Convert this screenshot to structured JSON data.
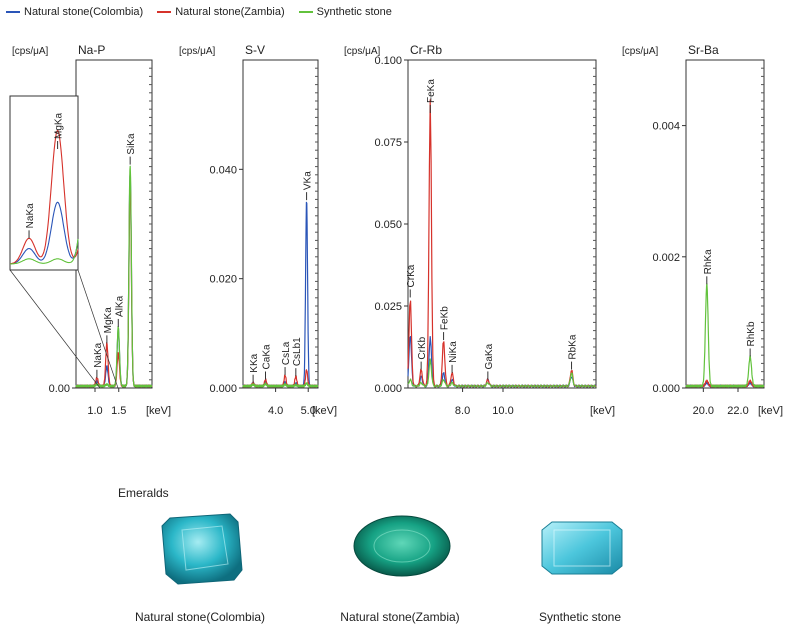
{
  "legend": [
    {
      "name": "Natural stone(Colombia)",
      "color": "#2a55b8"
    },
    {
      "name": "Natural stone(Zambia)",
      "color": "#d6322b"
    },
    {
      "name": "Synthetic stone",
      "color": "#62c23c"
    }
  ],
  "chart_data": [
    {
      "type": "line",
      "title": "Na-P",
      "ylabel": "[cps/μA]",
      "xlabel": "[keV]",
      "xlim": [
        0.6,
        2.2
      ],
      "ylim": [
        0,
        2.0
      ],
      "xticks": [
        "1.0",
        "1.5"
      ],
      "yticks": [
        "0.00",
        "1.00"
      ],
      "peaks": [
        "NaKa",
        "MgKa",
        "AlKa",
        "SiKa"
      ],
      "series": [
        {
          "name": "Natural stone(Colombia)",
          "values": [
            [
              1.04,
              0.03
            ],
            [
              1.25,
              0.12
            ],
            [
              1.49,
              0.35
            ],
            [
              1.74,
              1.3
            ]
          ]
        },
        {
          "name": "Natural stone(Zambia)",
          "values": [
            [
              1.04,
              0.05
            ],
            [
              1.25,
              0.26
            ],
            [
              1.49,
              0.2
            ],
            [
              1.74,
              1.25
            ]
          ]
        },
        {
          "name": "Synthetic stone",
          "values": [
            [
              1.04,
              0.01
            ],
            [
              1.25,
              0.01
            ],
            [
              1.49,
              0.36
            ],
            [
              1.74,
              1.35
            ]
          ]
        }
      ],
      "inset": {
        "peaks": [
          "NaKa",
          "MgKa"
        ]
      }
    },
    {
      "type": "line",
      "title": "S-V",
      "ylabel": "[cps/μA]",
      "xlabel": "[keV]",
      "xlim": [
        3.0,
        5.3
      ],
      "ylim": [
        0,
        0.06
      ],
      "xticks": [
        "4.0",
        "5.0"
      ],
      "yticks": [
        "0.000",
        "0.020",
        "0.040"
      ],
      "peaks": [
        "KKa",
        "CaKa",
        "CsLa",
        "CsLb1",
        "VKa"
      ],
      "series": [
        {
          "name": "Natural stone(Colombia)",
          "values": [
            [
              3.31,
              0.0006
            ],
            [
              3.69,
              0.0009
            ],
            [
              4.29,
              0.0007
            ],
            [
              4.62,
              0.0005
            ],
            [
              4.95,
              0.034
            ]
          ]
        },
        {
          "name": "Natural stone(Zambia)",
          "values": [
            [
              3.31,
              0.0006
            ],
            [
              3.69,
              0.0012
            ],
            [
              4.29,
              0.002
            ],
            [
              4.62,
              0.0018
            ],
            [
              4.95,
              0.003
            ]
          ]
        },
        {
          "name": "Synthetic stone",
          "values": [
            [
              3.31,
              0.0003
            ],
            [
              3.69,
              0.0004
            ],
            [
              4.29,
              0.0003
            ],
            [
              4.62,
              0.0002
            ],
            [
              4.95,
              0.0005
            ]
          ]
        }
      ]
    },
    {
      "type": "line",
      "title": "Cr-Rb",
      "ylabel": "[cps/μA]",
      "xlabel": "[keV]",
      "xlim": [
        5.3,
        14.6
      ],
      "ylim": [
        0,
        0.1
      ],
      "xticks": [
        "8.0",
        "10.0"
      ],
      "yticks": [
        "0.000",
        "0.025",
        "0.050",
        "0.075",
        "0.100"
      ],
      "peaks": [
        "CrKa",
        "CrKb",
        "FeKa",
        "FeKb",
        "NiKa",
        "GaKa",
        "RbKa"
      ],
      "series": [
        {
          "name": "Natural stone(Colombia)",
          "values": [
            [
              5.41,
              0.016
            ],
            [
              5.95,
              0.003
            ],
            [
              6.4,
              0.015
            ],
            [
              7.06,
              0.004
            ],
            [
              7.48,
              0.002
            ],
            [
              9.25,
              0.002
            ],
            [
              13.39,
              0.003
            ]
          ]
        },
        {
          "name": "Natural stone(Zambia)",
          "values": [
            [
              5.41,
              0.027
            ],
            [
              5.95,
              0.005
            ],
            [
              6.4,
              0.087
            ],
            [
              7.06,
              0.014
            ],
            [
              7.48,
              0.004
            ],
            [
              9.25,
              0.002
            ],
            [
              13.39,
              0.005
            ]
          ]
        },
        {
          "name": "Synthetic stone",
          "values": [
            [
              5.41,
              0.002
            ],
            [
              5.95,
              0.001
            ],
            [
              6.4,
              0.008
            ],
            [
              7.06,
              0.002
            ],
            [
              7.48,
              0.001
            ],
            [
              9.25,
              0.001
            ],
            [
              13.39,
              0.004
            ]
          ]
        }
      ]
    },
    {
      "type": "line",
      "title": "Sr-Ba",
      "ylabel": "[cps/μA]",
      "xlabel": "[keV]",
      "xlim": [
        19.0,
        23.5
      ],
      "ylim": [
        0,
        0.005
      ],
      "xticks": [
        "20.0",
        "22.0"
      ],
      "yticks": [
        "0.000",
        "0.002",
        "0.004"
      ],
      "peaks": [
        "RhKa",
        "RhKb"
      ],
      "series": [
        {
          "name": "Natural stone(Colombia)",
          "values": [
            [
              20.2,
              5e-05
            ],
            [
              22.7,
              5e-05
            ]
          ]
        },
        {
          "name": "Natural stone(Zambia)",
          "values": [
            [
              20.2,
              8e-05
            ],
            [
              22.7,
              8e-05
            ]
          ]
        },
        {
          "name": "Synthetic stone",
          "values": [
            [
              20.2,
              0.00155
            ],
            [
              22.7,
              0.00045
            ]
          ]
        }
      ]
    }
  ],
  "gems": {
    "title": "Emeralds",
    "items": [
      {
        "label": "Natural stone(Colombia)",
        "color": "#2bb7c8"
      },
      {
        "label": "Natural stone(Zambia)",
        "color": "#17a585"
      },
      {
        "label": "Synthetic stone",
        "color": "#4cc6dc"
      }
    ]
  }
}
